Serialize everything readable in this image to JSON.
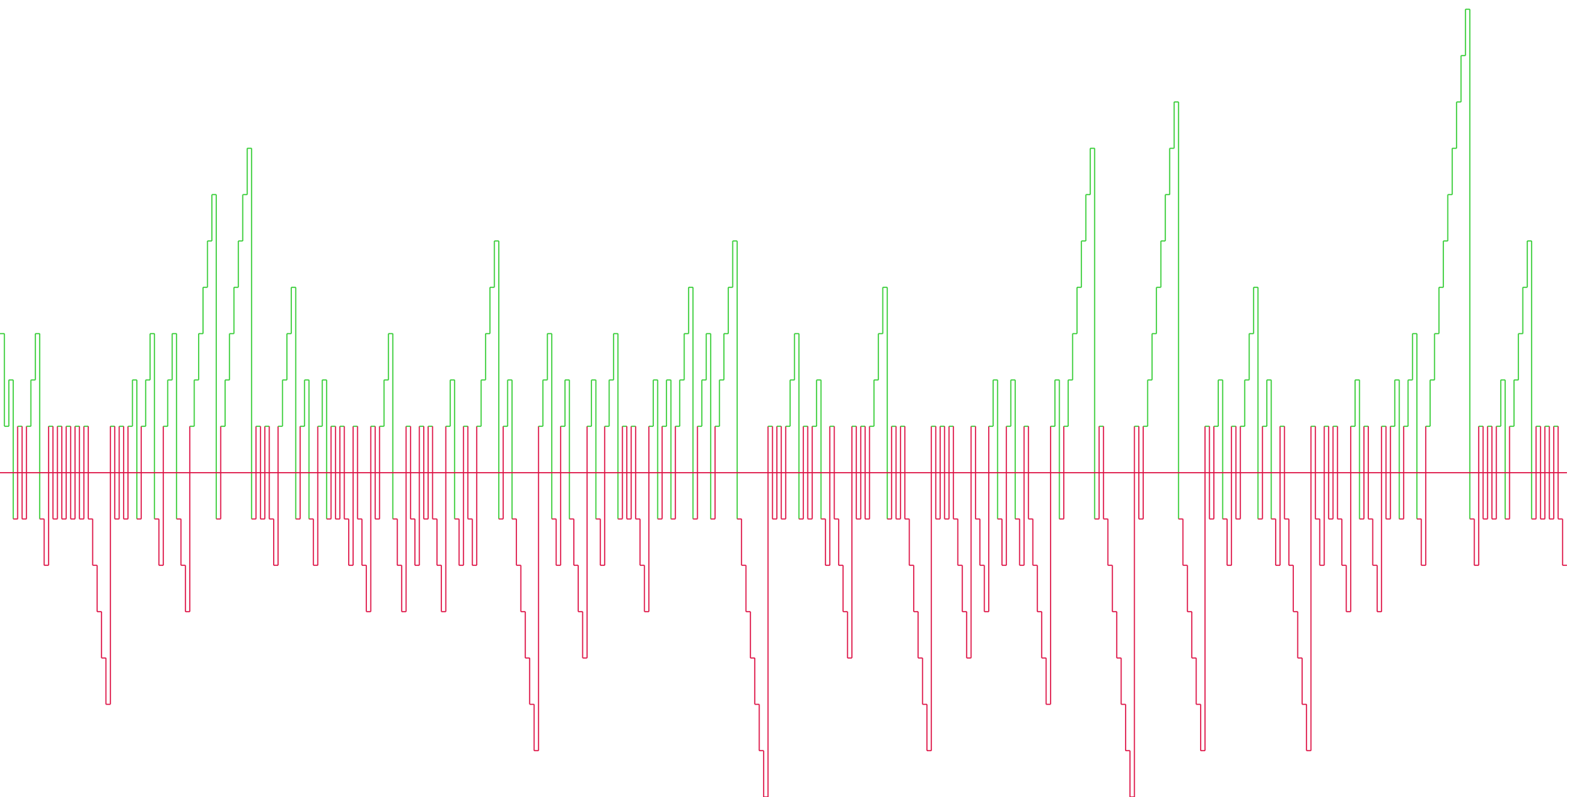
{
  "chart_data": {
    "type": "line",
    "step": "post",
    "title": "",
    "xlabel": "",
    "ylabel": "",
    "grid": false,
    "legend": "none",
    "colors": {
      "positive": "#33cc33",
      "negative": "#dd1144",
      "baseline_positive": "#33cc33",
      "baseline_negative": "#dd1144",
      "background": "#ffffff"
    },
    "ylim": [
      -7.0,
      10.2
    ],
    "baseline": 0,
    "values": [
      3,
      1,
      2,
      -1,
      1,
      -1,
      1,
      2,
      3,
      -1,
      -2,
      1,
      -1,
      1,
      -1,
      1,
      -1,
      1,
      -1,
      1,
      -1,
      -2,
      -3,
      -4,
      -5,
      1,
      -1,
      1,
      -1,
      1,
      2,
      -1,
      1,
      2,
      3,
      -1,
      -2,
      1,
      2,
      3,
      -1,
      -2,
      -3,
      1,
      2,
      3,
      4,
      5,
      6,
      -1,
      1,
      2,
      3,
      4,
      5,
      6,
      7,
      -1,
      1,
      -1,
      1,
      -1,
      -2,
      1,
      2,
      3,
      4,
      -1,
      1,
      2,
      -1,
      -2,
      1,
      2,
      -1,
      1,
      -1,
      1,
      -1,
      -2,
      1,
      -1,
      -2,
      -3,
      1,
      -1,
      1,
      2,
      3,
      -1,
      -2,
      -3,
      1,
      -1,
      -2,
      1,
      -1,
      1,
      -1,
      -2,
      -3,
      1,
      2,
      -1,
      -2,
      1,
      -1,
      -2,
      1,
      2,
      3,
      4,
      5,
      -1,
      1,
      2,
      -1,
      -2,
      -3,
      -4,
      -5,
      -6,
      1,
      2,
      3,
      -1,
      -2,
      1,
      2,
      -1,
      -2,
      -3,
      -4,
      1,
      2,
      -1,
      -2,
      1,
      2,
      3,
      -1,
      1,
      -1,
      1,
      -1,
      -2,
      -3,
      1,
      2,
      -1,
      1,
      2,
      -1,
      1,
      2,
      3,
      4,
      -1,
      1,
      2,
      3,
      -1,
      1,
      2,
      3,
      4,
      5,
      -1,
      -2,
      -3,
      -4,
      -5,
      -6,
      -7,
      1,
      -1,
      1,
      -1,
      1,
      2,
      3,
      -1,
      1,
      -1,
      1,
      2,
      -1,
      -2,
      1,
      -1,
      -2,
      -3,
      -4,
      1,
      -1,
      1,
      -1,
      1,
      2,
      3,
      4,
      -1,
      1,
      -1,
      1,
      -1,
      -2,
      -3,
      -4,
      -5,
      -6,
      1,
      -1,
      1,
      -1,
      1,
      -1,
      -2,
      -3,
      -4,
      1,
      -1,
      -2,
      -3,
      1,
      2,
      -1,
      -2,
      1,
      2,
      -1,
      -2,
      1,
      -1,
      -2,
      -3,
      -4,
      -5,
      1,
      2,
      -1,
      1,
      2,
      3,
      4,
      5,
      6,
      7,
      -1,
      1,
      -1,
      -2,
      -3,
      -4,
      -5,
      -6,
      -7,
      1,
      -1,
      1,
      2,
      3,
      4,
      5,
      6,
      7,
      8,
      -1,
      -2,
      -3,
      -4,
      -5,
      -6,
      1,
      -1,
      1,
      2,
      -1,
      -2,
      1,
      -1,
      1,
      2,
      3,
      4,
      -1,
      1,
      2,
      -1,
      -2,
      1,
      -1,
      -2,
      -3,
      -4,
      -5,
      -6,
      1,
      -1,
      -2,
      1,
      -1,
      1,
      -1,
      -2,
      -3,
      1,
      2,
      -1,
      1,
      -1,
      -2,
      -3,
      1,
      -1,
      1,
      2,
      -1,
      1,
      2,
      3,
      -1,
      -2,
      1,
      2,
      3,
      4,
      5,
      6,
      7,
      8,
      9,
      10,
      -1,
      -2,
      1,
      -1,
      1,
      -1,
      1,
      2,
      -1,
      1,
      2,
      3,
      4,
      5,
      -1,
      1,
      -1,
      1,
      -1,
      1,
      -1,
      -2
    ]
  }
}
